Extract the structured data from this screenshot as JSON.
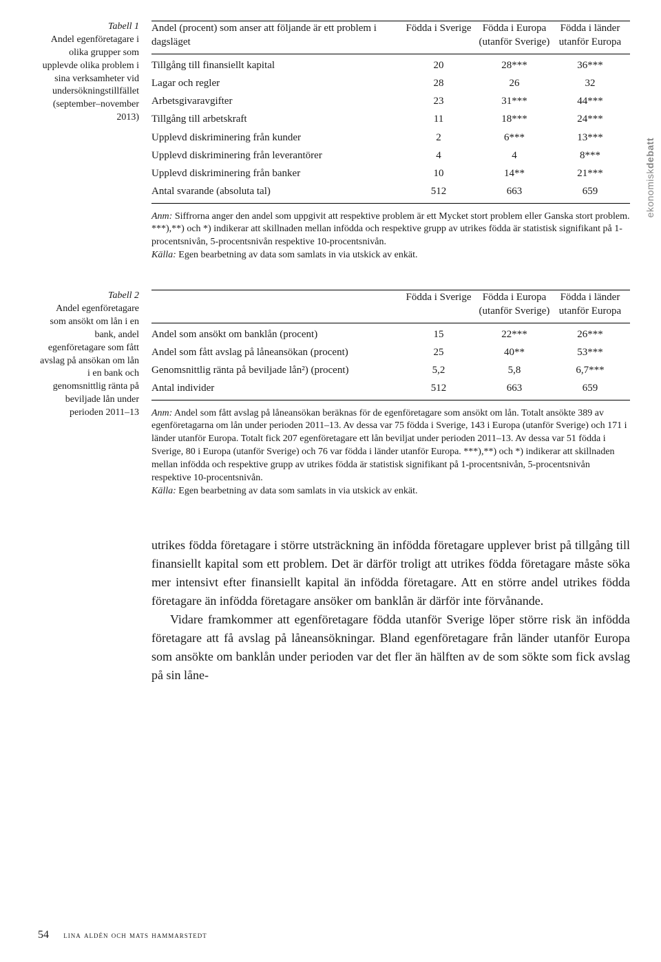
{
  "sidebar_label_prefix": "ekonomisk",
  "sidebar_label_bold": "debatt",
  "table1": {
    "caption_label": "Tabell 1",
    "caption_text": "Andel egenföretagare i olika grupper som upplevde olika problem i sina verksamheter vid undersökningstillfället (september–november 2013)",
    "columns": [
      "Andel (procent) som anser att följande är ett problem i dagsläget",
      "Födda i Sverige",
      "Födda i Europa (utanför Sverige)",
      "Födda i länder utanför Europa"
    ],
    "rows": [
      [
        "Tillgång till finansiellt kapital",
        "20",
        "28***",
        "36***"
      ],
      [
        "Lagar och regler",
        "28",
        "26",
        "32"
      ],
      [
        "Arbetsgivaravgifter",
        "23",
        "31***",
        "44***"
      ],
      [
        "Tillgång till arbetskraft",
        "11",
        "18***",
        "24***"
      ],
      [
        "Upplevd diskriminering från kunder",
        "2",
        "6***",
        "13***"
      ],
      [
        "Upplevd diskriminering från leverantörer",
        "4",
        "4",
        "8***"
      ],
      [
        "Upplevd diskriminering från banker",
        "10",
        "14**",
        "21***"
      ],
      [
        "Antal svarande (absoluta tal)",
        "512",
        "663",
        "659"
      ]
    ],
    "note_label": "Anm:",
    "note_text": " Siffrorna anger den andel som uppgivit att respektive problem är ett Mycket stort problem eller Ganska stort problem. ***),**) och *) indikerar att skillnaden mellan infödda och respektive grupp av utrikes födda är statistisk signifikant på 1-procentsnivån, 5-procentsnivån respektive 10-procentsnivån.",
    "source_label": "Källa:",
    "source_text": " Egen bearbetning av data som samlats in via utskick av enkät."
  },
  "table2": {
    "caption_label": "Tabell 2",
    "caption_text": "Andel egenföretagare som ansökt om lån i en bank, andel egenföretagare som fått avslag på ansökan om lån i en bank och genomsnittlig ränta på beviljade lån under perioden 2011–13",
    "columns": [
      "",
      "Födda i Sverige",
      "Födda i Europa (utanför Sverige)",
      "Födda i länder utanför Europa"
    ],
    "rows": [
      [
        "Andel som ansökt om banklån (procent)",
        "15",
        "22***",
        "26***"
      ],
      [
        "Andel som fått avslag på låneansökan (procent)",
        "25",
        "40**",
        "53***"
      ],
      [
        "Genomsnittlig ränta på beviljade lån²) (procent)",
        "5,2",
        "5,8",
        "6,7***"
      ],
      [
        "Antal individer",
        "512",
        "663",
        "659"
      ]
    ],
    "note_label": "Anm:",
    "note_text": " Andel som fått avslag på låneansökan beräknas för de egenföretagare som ansökt om lån. Totalt ansökte 389 av egenföretagarna om lån under perioden 2011–13. Av dessa var 75 födda i Sverige, 143 i Europa (utanför Sverige) och 171 i länder utanför Europa. Totalt fick 207 egenföretagare ett lån beviljat under perioden 2011–13. Av dessa var 51 födda i Sverige, 80 i Europa (utanför Sverige) och 76 var födda i länder utanför Europa. ***),**) och *) indikerar att skillnaden mellan infödda och respektive grupp av utrikes födda är statistisk signifikant på 1-procentsnivån, 5-procentsnivån respektive 10-procentsnivån.",
    "source_label": "Källa:",
    "source_text": " Egen bearbetning av data som samlats in via utskick av enkät."
  },
  "body_p1": "utrikes födda företagare i större utsträckning än infödda företagare upplever brist på tillgång till finansiellt kapital som ett problem. Det är därför troligt att utrikes födda företagare måste söka mer intensivt efter finansiellt kapital än infödda företagare. Att en större andel utrikes födda företagare än infödda företagare ansöker om banklån är därför inte förvånande.",
  "body_p2": "Vidare framkommer att egenföretagare födda utanför Sverige löper större risk än infödda företagare att få avslag på låneansökningar. Bland egenföretagare från länder utanför Europa som ansökte om banklån under perioden var det fler än hälften av de som sökte som fick avslag på sin låne-",
  "page_number": "54",
  "authors": "lina aldén och mats hammarstedt"
}
